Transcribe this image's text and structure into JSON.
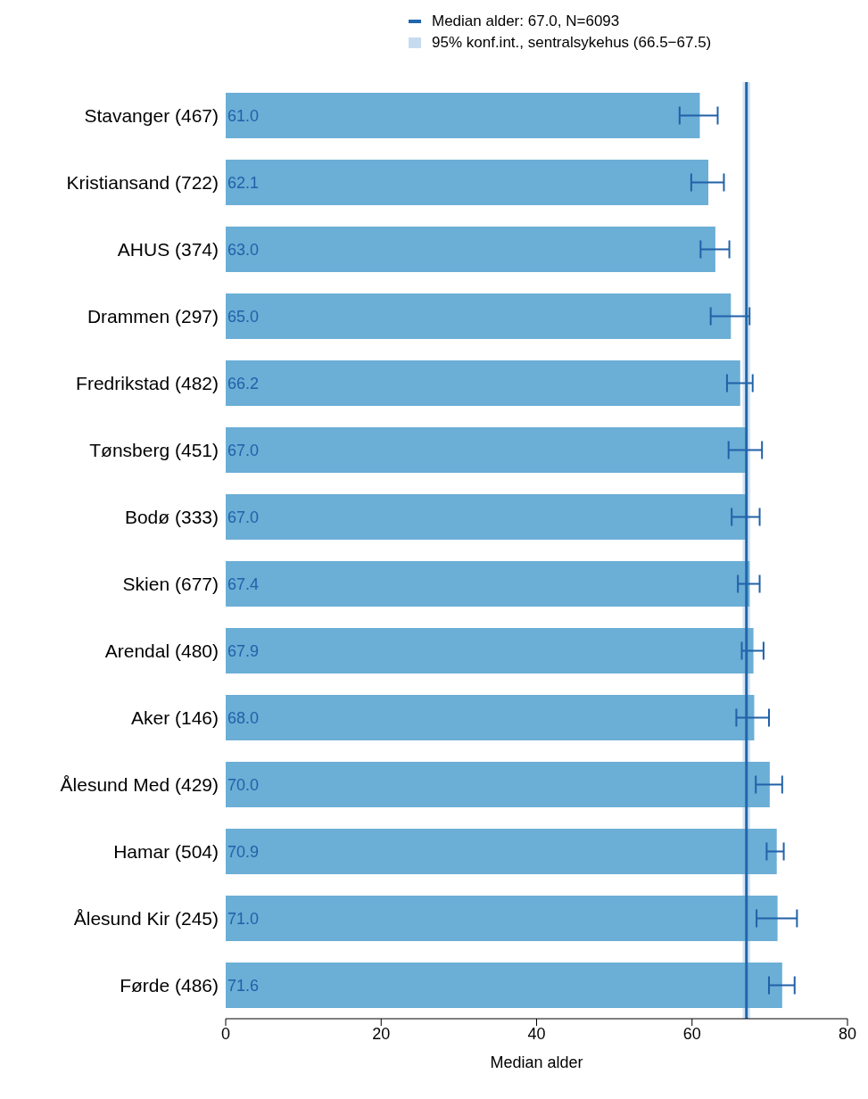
{
  "chart_data": {
    "type": "bar",
    "orientation": "horizontal",
    "xlabel": "Median alder",
    "categories": [
      "Stavanger (467)",
      "Kristiansand (722)",
      "AHUS (374)",
      "Drammen (297)",
      "Fredrikstad (482)",
      "Tønsberg (451)",
      "Bodø (333)",
      "Skien (677)",
      "Arendal (480)",
      "Aker (146)",
      "Ålesund Med (429)",
      "Hamar (504)",
      "Ålesund Kir (245)",
      "Førde (486)"
    ],
    "values": [
      61.0,
      62.1,
      63.0,
      65.0,
      66.2,
      67.0,
      67.0,
      67.4,
      67.9,
      68.0,
      70.0,
      70.9,
      71.0,
      71.6
    ],
    "value_labels": [
      "61.0",
      "62.1",
      "63.0",
      "65.0",
      "66.2",
      "67.0",
      "67.0",
      "67.4",
      "67.9",
      "68.0",
      "70.0",
      "70.9",
      "71.0",
      "71.6"
    ],
    "errors": [
      [
        58.4,
        63.3
      ],
      [
        59.9,
        64.1
      ],
      [
        61.1,
        64.8
      ],
      [
        62.4,
        67.4
      ],
      [
        64.5,
        67.8
      ],
      [
        64.7,
        69.0
      ],
      [
        65.1,
        68.7
      ],
      [
        65.9,
        68.7
      ],
      [
        66.4,
        69.2
      ],
      [
        65.7,
        69.9
      ],
      [
        68.2,
        71.6
      ],
      [
        69.6,
        71.8
      ],
      [
        68.3,
        73.5
      ],
      [
        69.9,
        73.2
      ]
    ],
    "color": "#6baed6",
    "xlim": [
      0,
      80
    ],
    "xticks": [
      0,
      20,
      40,
      60,
      80
    ],
    "ref_lines": [
      {
        "axis": "x",
        "value": 67.0,
        "label": "Median alder: 67.0, N=6093",
        "color": "#2166ac"
      }
    ],
    "bands": [
      {
        "axis": "x",
        "from": 66.5,
        "to": 67.5,
        "label": "95% konf.int., sentralsykehus (66.5−67.5)",
        "color": "#c6dbef"
      }
    ],
    "grid": false,
    "legend": "top"
  }
}
